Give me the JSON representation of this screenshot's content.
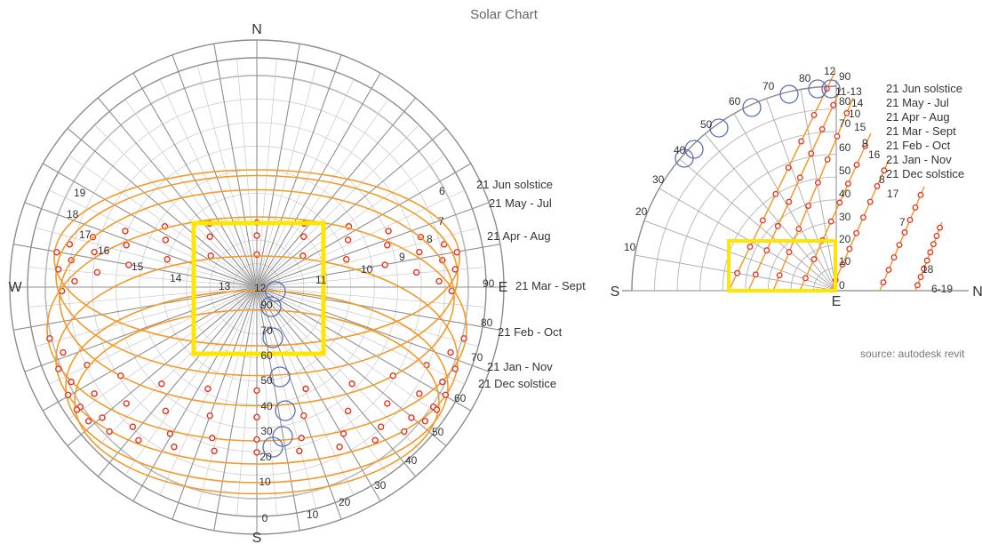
{
  "title": "Solar Chart",
  "source": "source: autodesk revit",
  "colors": {
    "sun_path": "#f29a2b",
    "sun_point": "#e8321e",
    "highlight": "#ffe600",
    "marker": "#5b6fb5",
    "grid": "#9a9a9a"
  },
  "compass": {
    "north": "N",
    "south": "S",
    "east": "E",
    "west": "W"
  },
  "polar": {
    "center_label": "12",
    "altitude_labels": [
      "0",
      "10",
      "20",
      "30",
      "40",
      "50",
      "60",
      "70",
      "80",
      "90"
    ],
    "azimuth_labels": [
      "10",
      "20",
      "30",
      "40",
      "50",
      "60",
      "70",
      "80",
      "90"
    ],
    "hour_labels_left": [
      "19",
      "18",
      "17",
      "16",
      "15",
      "14",
      "13"
    ],
    "hour_labels_right": [
      "6",
      "7",
      "8",
      "9",
      "10",
      "11"
    ],
    "inner_labels": [
      "90",
      "70",
      "60",
      "50",
      "40",
      "30",
      "20"
    ],
    "paths": [
      "21 Jun solstice",
      "21 May - Jul",
      "21 Apr - Aug",
      "21 Mar - Sept",
      "21 Feb - Oct",
      "21 Jan - Nov",
      "21 Dec solstice"
    ]
  },
  "section": {
    "left_label": "S",
    "right_label": "N",
    "bottom_label": "E",
    "arc_labels": [
      "10",
      "20",
      "30",
      "40",
      "50",
      "60",
      "70",
      "80",
      "90"
    ],
    "axis_labels": [
      "0",
      "10",
      "20",
      "30",
      "40",
      "50",
      "60",
      "70",
      "80",
      "90"
    ],
    "top_labels": [
      "12",
      "90",
      "11-13",
      "14",
      "10",
      "15",
      "9",
      "16",
      "8",
      "17",
      "7",
      "18",
      "6-19"
    ],
    "legend": [
      "21 Jun solstice",
      "21 May - Jul",
      "21 Apr - Aug",
      "21 Mar - Sept",
      "21 Feb - Oct",
      "21 Jan - Nov",
      "21 Dec solstice"
    ]
  }
}
